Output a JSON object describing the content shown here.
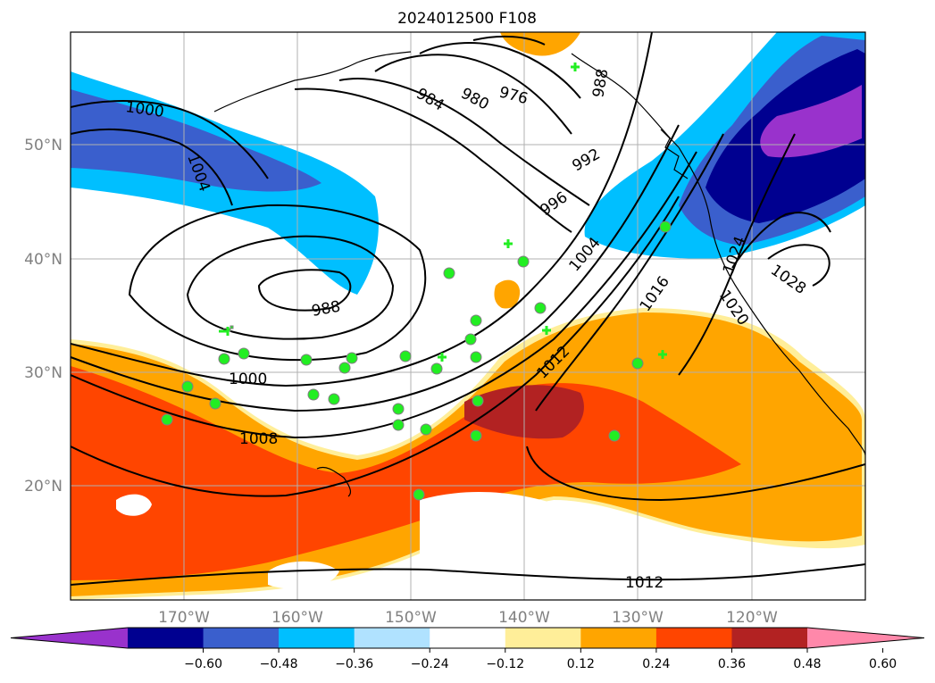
{
  "title": "2024012500 F108",
  "lat_labels": [
    "50°N",
    "40°N",
    "30°N",
    "20°N"
  ],
  "lon_labels": [
    "170°W",
    "160°W",
    "150°W",
    "140°W",
    "130°W",
    "120°W"
  ],
  "contour_labels": [
    "1000",
    "1004",
    "984",
    "980",
    "976",
    "988",
    "992",
    "996",
    "1004",
    "1000",
    "1008",
    "1012",
    "1016",
    "1020",
    "1024",
    "1028",
    "1012",
    "988"
  ],
  "colorbar": {
    "colors": [
      "#9932cc",
      "#000090",
      "#3a5fcd",
      "#00bfff",
      "#b0e2ff",
      "#ffffff",
      "#ffee99",
      "#ffa500",
      "#ff4500",
      "#b22222",
      "#ff88aa"
    ],
    "tick_labels": [
      "−0.60",
      "−0.48",
      "−0.36",
      "−0.24",
      "−0.12",
      "0.12",
      "0.24",
      "0.36",
      "0.48",
      "0.60"
    ]
  },
  "colors": {
    "land_line": "#000000",
    "contour": "#000000",
    "grid": "#b0b0b0",
    "station_marker": "#22ee22",
    "station_outline": "#808080"
  }
}
